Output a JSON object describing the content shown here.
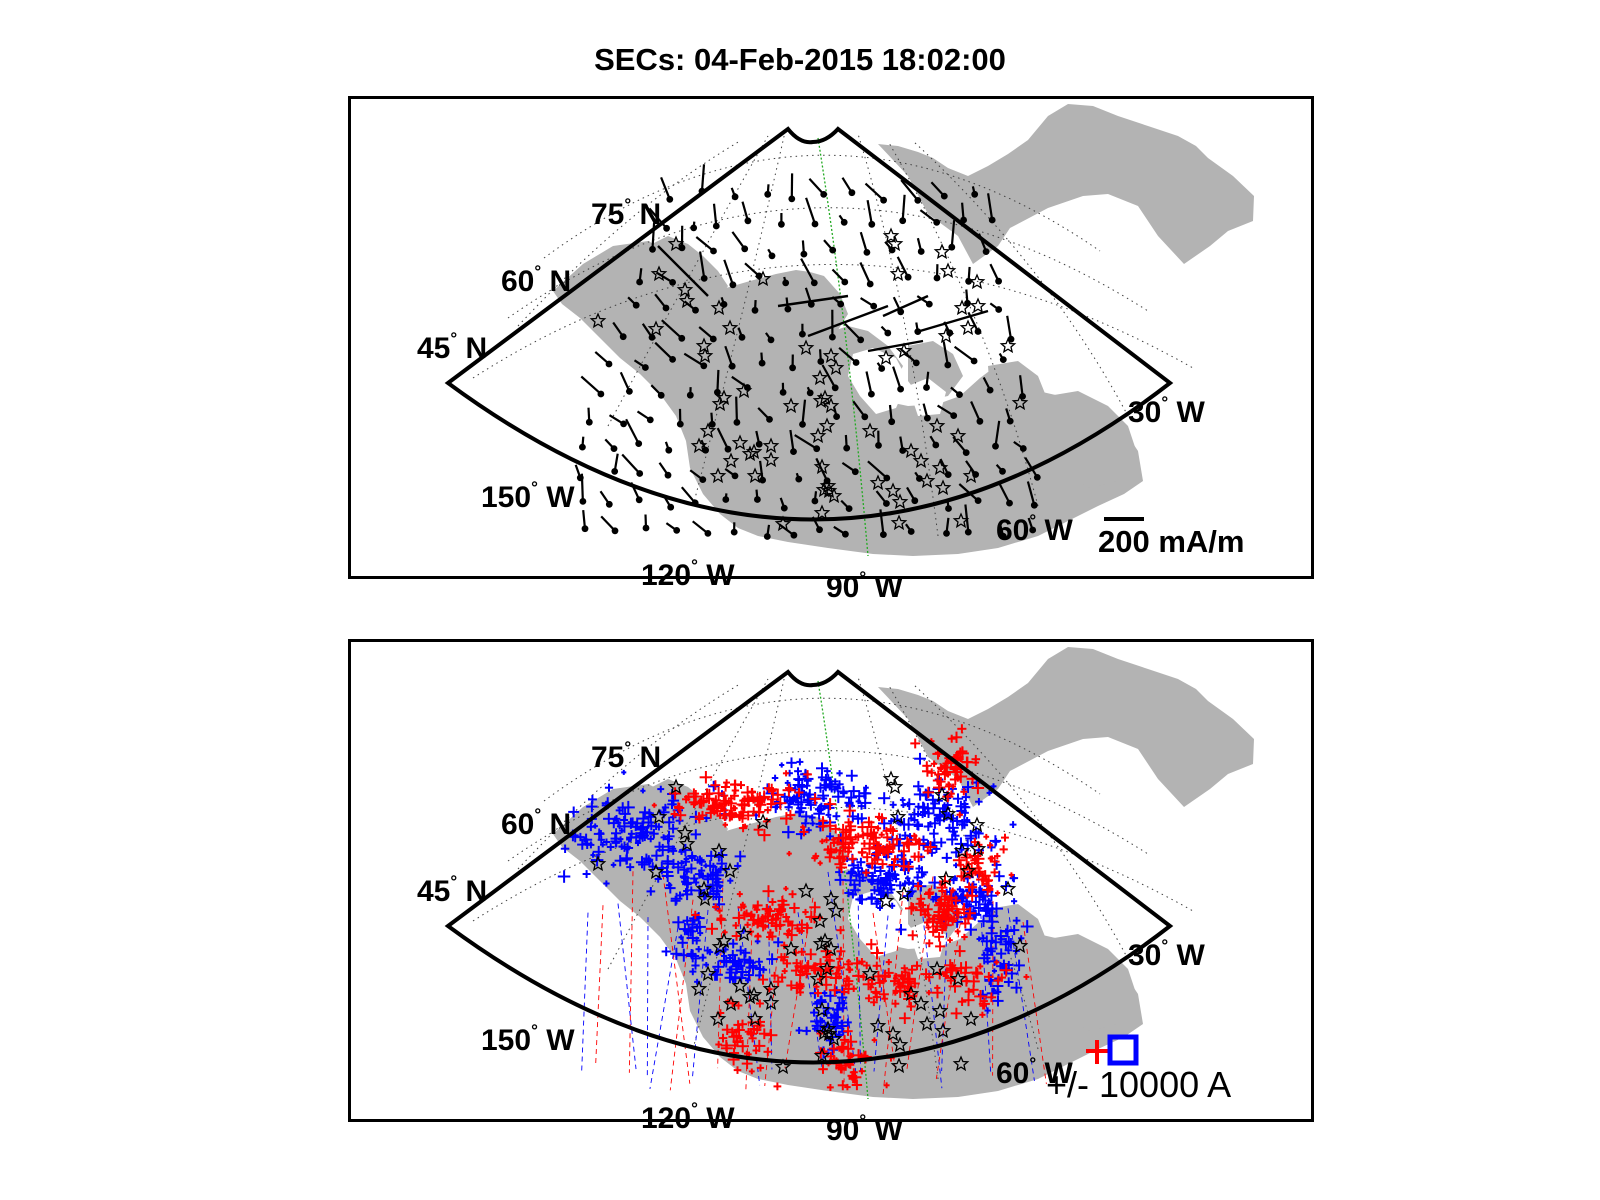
{
  "title": "SECs: 04-Feb-2015 18:02:00",
  "colors": {
    "land": "#b3b3b3",
    "grid": "#404040",
    "meridian": "#22aa22",
    "positive": "#ff0000",
    "negative": "#0000ff",
    "vector": "#000000"
  },
  "labels": {
    "lat_75": "75",
    "lat_60": "60",
    "lat_45": "45",
    "lon_30": "30",
    "lon_60": "60",
    "lon_90": "90",
    "lon_120": "120",
    "lon_150": "150",
    "north": "N",
    "west": "W",
    "degree": "°"
  },
  "top_panel": {
    "legend_value": "200 mA/m"
  },
  "bottom_panel": {
    "legend_value": "+/- 10000 A"
  },
  "markers": {
    "station_icon": "star-icon",
    "vector_icon": "dot-with-tail",
    "positive_icon": "plus-icon",
    "negative_icon": "plus-icon"
  }
}
